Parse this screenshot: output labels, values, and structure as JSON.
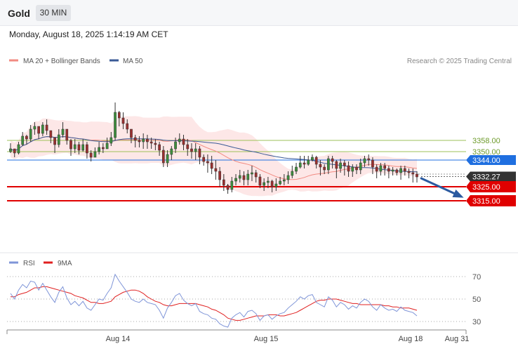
{
  "header": {
    "title": "Gold",
    "timeframe": "30 MIN",
    "datetime": "Monday, August 18, 2025 1:14:19 AM CET"
  },
  "legend": {
    "items": [
      {
        "label": "MA 20 + Bollinger Bands",
        "color": "#f28b82"
      },
      {
        "label": "MA 50",
        "color": "#3a5a96"
      }
    ],
    "copyright": "Research © 2025 Trading Central"
  },
  "rsi_legend": {
    "items": [
      {
        "label": "RSI",
        "color": "#7f95d8"
      },
      {
        "label": "9MA",
        "color": "#e02020"
      }
    ]
  },
  "chart_data": [
    {
      "type": "candlestick",
      "symbol": "Gold",
      "interval": "30 MIN",
      "ylim": [
        3288,
        3408
      ],
      "x_ticks": [
        "Aug 14",
        "Aug 15",
        "Aug 18",
        "Aug 31"
      ],
      "levels": [
        {
          "value": 3358.0,
          "label": "3358.00",
          "kind": "resistance",
          "color": "#9ec25a"
        },
        {
          "value": 3350.0,
          "label": "3350.00",
          "kind": "resistance",
          "color": "#9ec25a"
        },
        {
          "value": 3344.0,
          "label": "3344.00",
          "kind": "pivot",
          "color": "#1f6fe0"
        },
        {
          "value": 3332.27,
          "label": "3332.27",
          "kind": "last-price",
          "color": "#333333"
        },
        {
          "value": 3325.0,
          "label": "3325.00",
          "kind": "support",
          "color": "#e00000"
        },
        {
          "value": 3315.0,
          "label": "3315.00",
          "kind": "support",
          "color": "#e00000"
        }
      ],
      "forecast": {
        "from": 3332.27,
        "to": 3315.0,
        "direction": "down",
        "color": "#2b5aa0"
      },
      "close": [
        3352,
        3349,
        3355,
        3361,
        3359,
        3366,
        3368,
        3363,
        3369,
        3365,
        3360,
        3355,
        3362,
        3366,
        3358,
        3352,
        3355,
        3351,
        3355,
        3349,
        3346,
        3350,
        3353,
        3352,
        3356,
        3360,
        3378,
        3374,
        3370,
        3366,
        3360,
        3358,
        3357,
        3359,
        3357,
        3356,
        3355,
        3351,
        3342,
        3348,
        3352,
        3357,
        3359,
        3355,
        3352,
        3350,
        3352,
        3346,
        3343,
        3342,
        3338,
        3336,
        3330,
        3326,
        3323,
        3329,
        3331,
        3333,
        3330,
        3334,
        3335,
        3332,
        3326,
        3328,
        3329,
        3325,
        3327,
        3329,
        3330,
        3333,
        3336,
        3339,
        3342,
        3341,
        3344,
        3346,
        3341,
        3339,
        3337,
        3345,
        3343,
        3338,
        3342,
        3340,
        3336,
        3339,
        3337,
        3342,
        3345,
        3344,
        3339,
        3336,
        3340,
        3338,
        3336,
        3337,
        3335,
        3338,
        3336,
        3335,
        3334,
        3332
      ],
      "high": [
        3356,
        3352,
        3357,
        3364,
        3362,
        3369,
        3371,
        3367,
        3371,
        3373,
        3365,
        3359,
        3366,
        3371,
        3365,
        3359,
        3359,
        3357,
        3359,
        3357,
        3351,
        3353,
        3357,
        3356,
        3360,
        3364,
        3385,
        3379,
        3378,
        3373,
        3366,
        3362,
        3361,
        3363,
        3362,
        3360,
        3359,
        3357,
        3354,
        3351,
        3354,
        3360,
        3363,
        3362,
        3359,
        3356,
        3356,
        3354,
        3348,
        3348,
        3347,
        3344,
        3339,
        3334,
        3327,
        3332,
        3334,
        3337,
        3336,
        3337,
        3340,
        3337,
        3334,
        3331,
        3332,
        3330,
        3331,
        3332,
        3334,
        3336,
        3340,
        3342,
        3347,
        3347,
        3347,
        3348,
        3347,
        3344,
        3341,
        3347,
        3347,
        3344,
        3345,
        3344,
        3343,
        3341,
        3341,
        3345,
        3347,
        3348,
        3346,
        3341,
        3342,
        3342,
        3340,
        3339,
        3338,
        3340,
        3340,
        3338,
        3338,
        3336
      ],
      "low": [
        3349,
        3346,
        3348,
        3354,
        3355,
        3357,
        3362,
        3359,
        3361,
        3362,
        3356,
        3349,
        3353,
        3360,
        3355,
        3347,
        3349,
        3348,
        3350,
        3345,
        3343,
        3346,
        3348,
        3349,
        3352,
        3354,
        3358,
        3368,
        3366,
        3363,
        3356,
        3353,
        3353,
        3352,
        3352,
        3352,
        3351,
        3347,
        3339,
        3339,
        3344,
        3349,
        3355,
        3351,
        3347,
        3345,
        3344,
        3341,
        3340,
        3335,
        3334,
        3330,
        3325,
        3322,
        3320,
        3321,
        3326,
        3328,
        3326,
        3326,
        3329,
        3328,
        3324,
        3322,
        3324,
        3321,
        3322,
        3326,
        3326,
        3327,
        3331,
        3334,
        3338,
        3338,
        3340,
        3343,
        3338,
        3333,
        3334,
        3334,
        3338,
        3331,
        3335,
        3333,
        3332,
        3332,
        3334,
        3334,
        3339,
        3340,
        3334,
        3331,
        3333,
        3333,
        3331,
        3333,
        3333,
        3330,
        3333,
        3331,
        3328,
        3328
      ]
    },
    {
      "type": "line",
      "name": "RSI",
      "x_ticks": [
        "Aug 14",
        "Aug 15",
        "Aug 18",
        "Aug 31"
      ],
      "y_ticks": [
        70,
        50,
        30
      ],
      "ylim": [
        25,
        75
      ],
      "series": [
        {
          "name": "RSI",
          "color": "#7f95d8",
          "values": [
            55,
            50,
            58,
            63,
            60,
            66,
            65,
            58,
            64,
            58,
            52,
            47,
            56,
            61,
            51,
            45,
            48,
            44,
            48,
            42,
            40,
            45,
            50,
            49,
            55,
            60,
            72,
            66,
            61,
            56,
            50,
            48,
            47,
            50,
            47,
            46,
            45,
            40,
            33,
            42,
            47,
            53,
            55,
            49,
            46,
            44,
            46,
            39,
            37,
            36,
            33,
            32,
            28,
            26,
            25,
            33,
            36,
            38,
            34,
            39,
            40,
            37,
            31,
            35,
            36,
            32,
            35,
            37,
            38,
            42,
            45,
            48,
            52,
            50,
            53,
            54,
            47,
            45,
            43,
            52,
            49,
            43,
            47,
            45,
            41,
            44,
            42,
            47,
            50,
            48,
            43,
            40,
            45,
            42,
            40,
            41,
            39,
            43,
            40,
            39,
            38,
            35
          ]
        },
        {
          "name": "9MA",
          "color": "#e02020",
          "values": [
            52,
            52,
            54,
            55,
            56,
            58,
            60,
            60,
            61,
            61,
            60,
            59,
            58,
            57,
            56,
            55,
            53,
            52,
            51,
            49,
            47,
            47,
            46,
            46,
            47,
            48,
            52,
            54,
            56,
            57,
            58,
            58,
            57,
            55,
            52,
            50,
            48,
            47,
            45,
            44,
            44,
            45,
            46,
            46,
            46,
            46,
            46,
            45,
            44,
            43,
            41,
            40,
            38,
            36,
            33,
            32,
            31,
            31,
            32,
            33,
            34,
            35,
            35,
            35,
            36,
            36,
            36,
            35,
            35,
            36,
            37,
            38,
            40,
            42,
            44,
            46,
            48,
            49,
            49,
            50,
            50,
            50,
            49,
            48,
            47,
            46,
            46,
            45,
            45,
            45,
            45,
            45,
            45,
            44,
            44,
            43,
            43,
            42,
            42,
            42,
            41,
            40
          ]
        }
      ]
    }
  ]
}
